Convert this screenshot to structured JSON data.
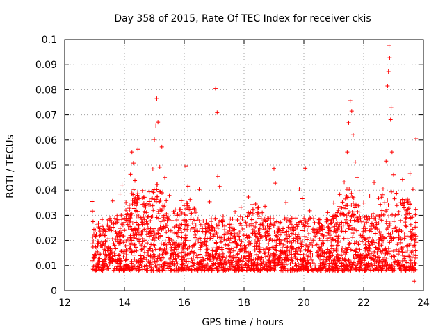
{
  "chart_data": {
    "type": "scatter",
    "title": "Day 358 of 2015, Rate Of TEC Index for receiver ckis",
    "xlabel": "GPS time / hours",
    "ylabel": "ROTI / TECUs",
    "xlim": [
      12,
      24
    ],
    "ylim": [
      0,
      0.1
    ],
    "x_ticks": [
      12,
      14,
      16,
      18,
      20,
      22,
      24
    ],
    "x_tick_labels": [
      "12",
      "14",
      "16",
      "18",
      "20",
      "22",
      "24"
    ],
    "y_ticks": [
      0,
      0.01,
      0.02,
      0.03,
      0.04,
      0.05,
      0.06,
      0.07,
      0.08,
      0.09,
      0.1
    ],
    "y_tick_labels": [
      "0",
      "0.01",
      "0.02",
      "0.03",
      "0.04",
      "0.05",
      "0.06",
      "0.07",
      "0.08",
      "0.09",
      "0.1"
    ],
    "grid": true,
    "marker": "+",
    "color": "#ff0000",
    "series": [
      {
        "name": "ROTI",
        "points": [
          [
            12.92,
            0.0355
          ],
          [
            12.93,
            0.0317
          ],
          [
            12.95,
            0.0275
          ],
          [
            13.0,
            0.0132
          ],
          [
            13.1,
            0.0155
          ],
          [
            13.2,
            0.0221
          ],
          [
            13.3,
            0.0249
          ],
          [
            13.45,
            0.0282
          ],
          [
            13.6,
            0.0357
          ],
          [
            13.75,
            0.0299
          ],
          [
            13.85,
            0.0385
          ],
          [
            13.92,
            0.0421
          ],
          [
            14.05,
            0.0351
          ],
          [
            14.2,
            0.0463
          ],
          [
            14.25,
            0.0552
          ],
          [
            14.3,
            0.0508
          ],
          [
            14.35,
            0.0438
          ],
          [
            14.45,
            0.0563
          ],
          [
            14.6,
            0.0398
          ],
          [
            14.75,
            0.0346
          ],
          [
            14.95,
            0.0485
          ],
          [
            15.0,
            0.0602
          ],
          [
            15.05,
            0.0656
          ],
          [
            15.08,
            0.0765
          ],
          [
            15.12,
            0.0671
          ],
          [
            15.18,
            0.0492
          ],
          [
            15.25,
            0.0572
          ],
          [
            15.35,
            0.0451
          ],
          [
            15.5,
            0.0379
          ],
          [
            15.7,
            0.0322
          ],
          [
            15.9,
            0.0358
          ],
          [
            16.05,
            0.0497
          ],
          [
            16.12,
            0.0416
          ],
          [
            16.3,
            0.0284
          ],
          [
            16.5,
            0.0403
          ],
          [
            16.7,
            0.0262
          ],
          [
            16.85,
            0.0354
          ],
          [
            17.05,
            0.0805
          ],
          [
            17.1,
            0.0709
          ],
          [
            17.12,
            0.0455
          ],
          [
            17.18,
            0.0415
          ],
          [
            17.3,
            0.0296
          ],
          [
            17.5,
            0.0263
          ],
          [
            17.7,
            0.0315
          ],
          [
            17.9,
            0.0332
          ],
          [
            18.15,
            0.0373
          ],
          [
            18.3,
            0.0307
          ],
          [
            18.5,
            0.0288
          ],
          [
            18.7,
            0.0336
          ],
          [
            18.85,
            0.0247
          ],
          [
            19.0,
            0.0487
          ],
          [
            19.05,
            0.0428
          ],
          [
            19.2,
            0.0271
          ],
          [
            19.4,
            0.0351
          ],
          [
            19.6,
            0.0289
          ],
          [
            19.85,
            0.0405
          ],
          [
            19.95,
            0.0366
          ],
          [
            20.05,
            0.0488
          ],
          [
            20.2,
            0.0318
          ],
          [
            20.5,
            0.0271
          ],
          [
            20.8,
            0.0311
          ],
          [
            21.0,
            0.0349
          ],
          [
            21.2,
            0.0383
          ],
          [
            21.35,
            0.0433
          ],
          [
            21.45,
            0.0552
          ],
          [
            21.5,
            0.0669
          ],
          [
            21.55,
            0.0757
          ],
          [
            21.6,
            0.0715
          ],
          [
            21.65,
            0.0621
          ],
          [
            21.72,
            0.0512
          ],
          [
            21.78,
            0.0451
          ],
          [
            21.85,
            0.0397
          ],
          [
            22.0,
            0.0349
          ],
          [
            22.2,
            0.0377
          ],
          [
            22.35,
            0.0431
          ],
          [
            22.5,
            0.0367
          ],
          [
            22.65,
            0.0405
          ],
          [
            22.75,
            0.0516
          ],
          [
            22.8,
            0.0815
          ],
          [
            22.83,
            0.0873
          ],
          [
            22.85,
            0.0975
          ],
          [
            22.87,
            0.0928
          ],
          [
            22.9,
            0.0681
          ],
          [
            22.92,
            0.0729
          ],
          [
            22.95,
            0.0552
          ],
          [
            23.0,
            0.0462
          ],
          [
            23.1,
            0.0388
          ],
          [
            23.3,
            0.0443
          ],
          [
            23.45,
            0.0351
          ],
          [
            23.55,
            0.0467
          ],
          [
            23.65,
            0.0403
          ],
          [
            23.75,
            0.0605
          ],
          [
            23.73,
            0.0302
          ],
          [
            23.7,
            0.0038
          ]
        ]
      }
    ],
    "dense_band": {
      "x_start": 12.92,
      "x_end": 23.75,
      "y_min": 0.004,
      "y_typical_max": 0.025
    }
  }
}
